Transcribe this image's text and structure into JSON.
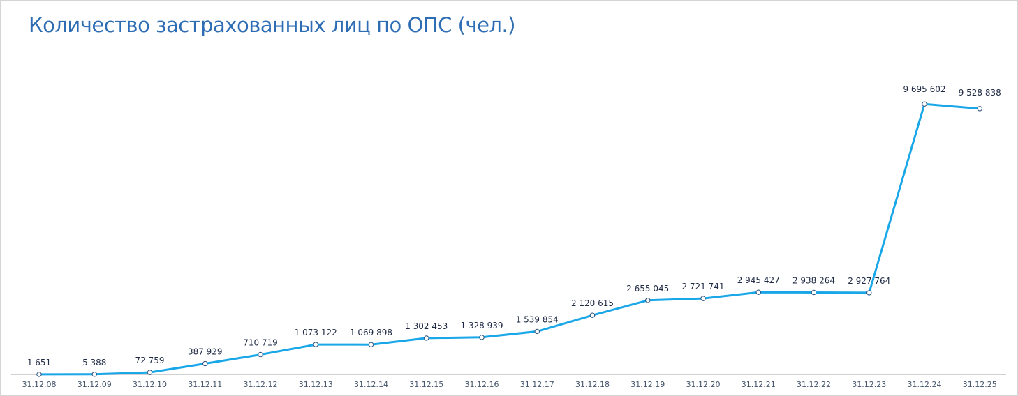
{
  "chart_data": {
    "type": "line",
    "title": "Количество застрахованных лиц по ОПС (чел.)",
    "xlabel": "",
    "ylabel": "",
    "ylim": [
      0,
      10000000
    ],
    "grid": false,
    "legend": "none",
    "categories": [
      "31.12.08",
      "31.12.09",
      "31.12.10",
      "31.12.11",
      "31.12.12",
      "31.12.13",
      "31.12.14",
      "31.12.15",
      "31.12.16",
      "31.12.17",
      "31.12.18",
      "31.12.19",
      "31.12.20",
      "31.12.21",
      "31.12.22",
      "31.12.23",
      "31.12.24",
      "31.12.25"
    ],
    "series": [
      {
        "values": [
          1651,
          5388,
          72759,
          387929,
          710719,
          1073122,
          1069898,
          1302453,
          1328939,
          1539854,
          2120615,
          2655045,
          2721741,
          2945427,
          2938264,
          2927764,
          9695602,
          9528838
        ],
        "labels": [
          "1 651",
          "5 388",
          "72 759",
          "387 929",
          "710 719",
          "1 073 122",
          "1 069 898",
          "1 302 453",
          "1 328 939",
          "1 539 854",
          "2 120 615",
          "2 655 045",
          "2 721 741",
          "2 945 427",
          "2 938 264",
          "2 927 764",
          "9 695 602",
          "9 528 838"
        ]
      }
    ],
    "colors": {
      "line": "#1aa7e8",
      "marker_fill": "#ffffff",
      "marker_stroke": "#2a4f7c",
      "axis": "#d0d0d0",
      "title": "#2e6db4"
    }
  }
}
